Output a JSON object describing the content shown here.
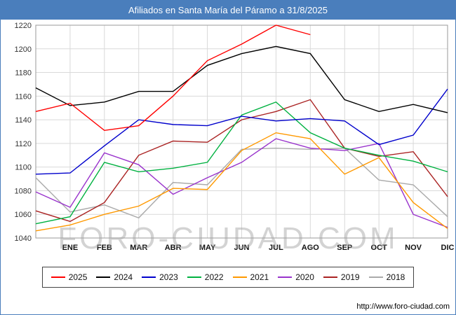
{
  "title": "Afiliados en Santa María del Páramo a 31/8/2025",
  "watermark": "FORO-CIUDAD.COM",
  "footer": {
    "url": "http://www.foro-ciudad.com"
  },
  "colors": {
    "header": "#4a7ebc",
    "grid": "#d9d9d9"
  },
  "chart_data": {
    "type": "line",
    "title": "Afiliados en Santa María del Páramo a 31/8/2025",
    "xlabel": "",
    "ylabel": "",
    "ylim": [
      1040,
      1220
    ],
    "ytick": 20,
    "grid": true,
    "legend_position": "bottom",
    "categories": [
      "",
      "ENE",
      "FEB",
      "MAR",
      "ABR",
      "MAY",
      "JUN",
      "JUL",
      "AGO",
      "SEP",
      "OCT",
      "NOV",
      "DIC"
    ],
    "series": [
      {
        "name": "2025",
        "color": "#ff0000",
        "values": [
          1147,
          1154,
          1131,
          1135,
          1160,
          1190,
          1204,
          1220,
          1212,
          null,
          null,
          null,
          null
        ]
      },
      {
        "name": "2024",
        "color": "#000000",
        "values": [
          1167,
          1152,
          1155,
          1164,
          1164,
          1186,
          1196,
          1202,
          1196,
          1157,
          1147,
          1153,
          1146
        ]
      },
      {
        "name": "2023",
        "color": "#0000cc",
        "values": [
          1094,
          1095,
          1118,
          1140,
          1136,
          1135,
          1143,
          1139,
          1141,
          1139,
          1119,
          1127,
          1166
        ]
      },
      {
        "name": "2022",
        "color": "#00b140",
        "values": [
          1052,
          1058,
          1104,
          1096,
          1099,
          1104,
          1144,
          1155,
          1129,
          1116,
          1110,
          1105,
          1096
        ]
      },
      {
        "name": "2021",
        "color": "#ff9900",
        "values": [
          1046,
          1051,
          1060,
          1067,
          1082,
          1081,
          1114,
          1129,
          1124,
          1094,
          1108,
          1070,
          1048
        ]
      },
      {
        "name": "2020",
        "color": "#9933cc",
        "values": [
          1079,
          1066,
          1112,
          1102,
          1077,
          1091,
          1104,
          1124,
          1116,
          1114,
          1120,
          1060,
          1049
        ]
      },
      {
        "name": "2019",
        "color": "#aa2222",
        "values": [
          1063,
          1054,
          1070,
          1110,
          1122,
          1121,
          1140,
          1147,
          1157,
          1116,
          1109,
          1113,
          1075
        ]
      },
      {
        "name": "2018",
        "color": "#aaaaaa",
        "values": [
          1091,
          1062,
          1068,
          1057,
          1087,
          1085,
          1115,
          1116,
          1115,
          1116,
          1089,
          1085,
          1058
        ]
      }
    ]
  }
}
